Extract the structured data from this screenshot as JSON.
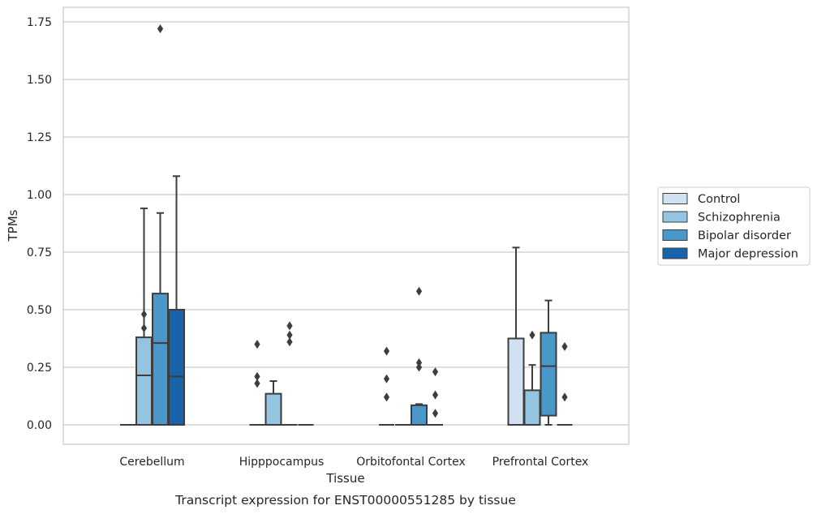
{
  "chart_data": {
    "type": "boxplot",
    "caption": "Transcript expression for ENST00000551285 by tissue",
    "xlabel": "Tissue",
    "ylabel": "TPMs",
    "ylim": [
      -0.085,
      1.81
    ],
    "yticks": [
      0.0,
      0.25,
      0.5,
      0.75,
      1.0,
      1.25,
      1.5,
      1.75
    ],
    "ytick_labels": [
      "0.00",
      "0.25",
      "0.50",
      "0.75",
      "1.00",
      "1.25",
      "1.50",
      "1.75"
    ],
    "grid": "horizontal",
    "legend_position": "right",
    "categories": [
      "Cerebellum",
      "Hipppocampus",
      "Orbitofontal Cortex",
      "Prefrontal Cortex"
    ],
    "series": [
      {
        "name": "Control",
        "color": "#d0e1f2",
        "boxes": [
          {
            "q1": 0.0,
            "median": 0.0,
            "q3": 0.0,
            "whisker_low": 0.0,
            "whisker_high": 0.0,
            "outliers": []
          },
          {
            "q1": 0.0,
            "median": 0.0,
            "q3": 0.0,
            "whisker_low": 0.0,
            "whisker_high": 0.0,
            "outliers": [
              0.18,
              0.21,
              0.35
            ]
          },
          {
            "q1": 0.0,
            "median": 0.0,
            "q3": 0.0,
            "whisker_low": 0.0,
            "whisker_high": 0.0,
            "outliers": [
              0.12,
              0.2,
              0.32
            ]
          },
          {
            "q1": 0.0,
            "median": 0.0,
            "q3": 0.375,
            "whisker_low": 0.0,
            "whisker_high": 0.77,
            "outliers": []
          }
        ]
      },
      {
        "name": "Schizophrenia",
        "color": "#94c4df",
        "boxes": [
          {
            "q1": 0.0,
            "median": 0.215,
            "q3": 0.38,
            "whisker_low": 0.0,
            "whisker_high": 0.94,
            "outliers": [
              0.42,
              0.48
            ]
          },
          {
            "q1": 0.0,
            "median": 0.0,
            "q3": 0.135,
            "whisker_low": 0.0,
            "whisker_high": 0.19,
            "outliers": []
          },
          {
            "q1": 0.0,
            "median": 0.0,
            "q3": 0.0,
            "whisker_low": 0.0,
            "whisker_high": 0.0,
            "outliers": []
          },
          {
            "q1": 0.0,
            "median": 0.0,
            "q3": 0.15,
            "whisker_low": 0.0,
            "whisker_high": 0.26,
            "outliers": [
              0.39
            ]
          }
        ]
      },
      {
        "name": "Bipolar disorder",
        "color": "#4a98c9",
        "boxes": [
          {
            "q1": 0.0,
            "median": 0.355,
            "q3": 0.57,
            "whisker_low": 0.0,
            "whisker_high": 0.92,
            "outliers": [
              1.72
            ]
          },
          {
            "q1": 0.0,
            "median": 0.0,
            "q3": 0.0,
            "whisker_low": 0.0,
            "whisker_high": 0.0,
            "outliers": [
              0.36,
              0.39,
              0.43
            ]
          },
          {
            "q1": 0.0,
            "median": 0.0,
            "q3": 0.085,
            "whisker_low": 0.0,
            "whisker_high": 0.09,
            "outliers": [
              0.25,
              0.27,
              0.58
            ]
          },
          {
            "q1": 0.04,
            "median": 0.255,
            "q3": 0.4,
            "whisker_low": 0.0,
            "whisker_high": 0.54,
            "outliers": []
          }
        ]
      },
      {
        "name": "Major depression",
        "color": "#1764ab",
        "boxes": [
          {
            "q1": 0.0,
            "median": 0.21,
            "q3": 0.5,
            "whisker_low": 0.0,
            "whisker_high": 1.08,
            "outliers": []
          },
          {
            "q1": 0.0,
            "median": 0.0,
            "q3": 0.0,
            "whisker_low": 0.0,
            "whisker_high": 0.0,
            "outliers": []
          },
          {
            "q1": 0.0,
            "median": 0.0,
            "q3": 0.0,
            "whisker_low": 0.0,
            "whisker_high": 0.0,
            "outliers": [
              0.05,
              0.13,
              0.23
            ]
          },
          {
            "q1": 0.0,
            "median": 0.0,
            "q3": 0.0,
            "whisker_low": 0.0,
            "whisker_high": 0.0,
            "outliers": [
              0.12,
              0.34
            ]
          }
        ]
      }
    ]
  }
}
